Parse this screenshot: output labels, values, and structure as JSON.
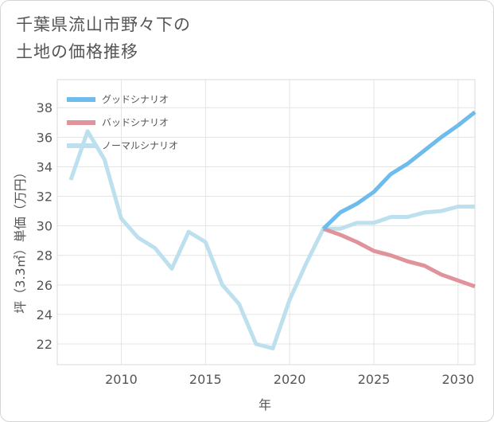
{
  "title": {
    "line1": "千葉県流山市野々下の",
    "line2": "土地の価格推移"
  },
  "chart_data": {
    "type": "line",
    "xlabel": "年",
    "ylabel": "坪（3.3㎡）単価（万円）",
    "xlim": [
      2006.2,
      2031
    ],
    "ylim": [
      20.6,
      39.9
    ],
    "x_ticks": [
      2010,
      2015,
      2020,
      2025,
      2030
    ],
    "y_ticks": [
      22,
      24,
      26,
      28,
      30,
      32,
      34,
      36,
      38
    ],
    "grid": true,
    "legend_position": "top-left",
    "series": [
      {
        "name": "グッドシナリオ",
        "color": "#6dbcec",
        "x": [
          2022,
          2023,
          2024,
          2025,
          2026,
          2027,
          2028,
          2029,
          2030,
          2031
        ],
        "y": [
          29.8,
          30.9,
          31.5,
          32.3,
          33.5,
          34.2,
          35.1,
          36.0,
          36.8,
          37.7
        ]
      },
      {
        "name": "バッドシナリオ",
        "color": "#e0939a",
        "x": [
          2022,
          2023,
          2024,
          2025,
          2026,
          2027,
          2028,
          2029,
          2030,
          2031
        ],
        "y": [
          29.8,
          29.4,
          28.9,
          28.3,
          28.0,
          27.6,
          27.3,
          26.7,
          26.3,
          25.9
        ]
      },
      {
        "name": "ノーマルシナリオ",
        "color": "#bde0ee",
        "x": [
          2007,
          2008,
          2009,
          2010,
          2011,
          2012,
          2013,
          2014,
          2015,
          2016,
          2017,
          2018,
          2019,
          2020,
          2021,
          2022,
          2023,
          2024,
          2025,
          2026,
          2027,
          2028,
          2029,
          2030,
          2031
        ],
        "y": [
          33.1,
          36.4,
          34.5,
          30.5,
          29.2,
          28.5,
          27.1,
          29.6,
          28.9,
          26.0,
          24.7,
          22.0,
          21.7,
          25.0,
          27.5,
          29.8,
          29.8,
          30.2,
          30.2,
          30.6,
          30.6,
          30.9,
          31.0,
          31.3,
          31.3
        ]
      }
    ]
  }
}
